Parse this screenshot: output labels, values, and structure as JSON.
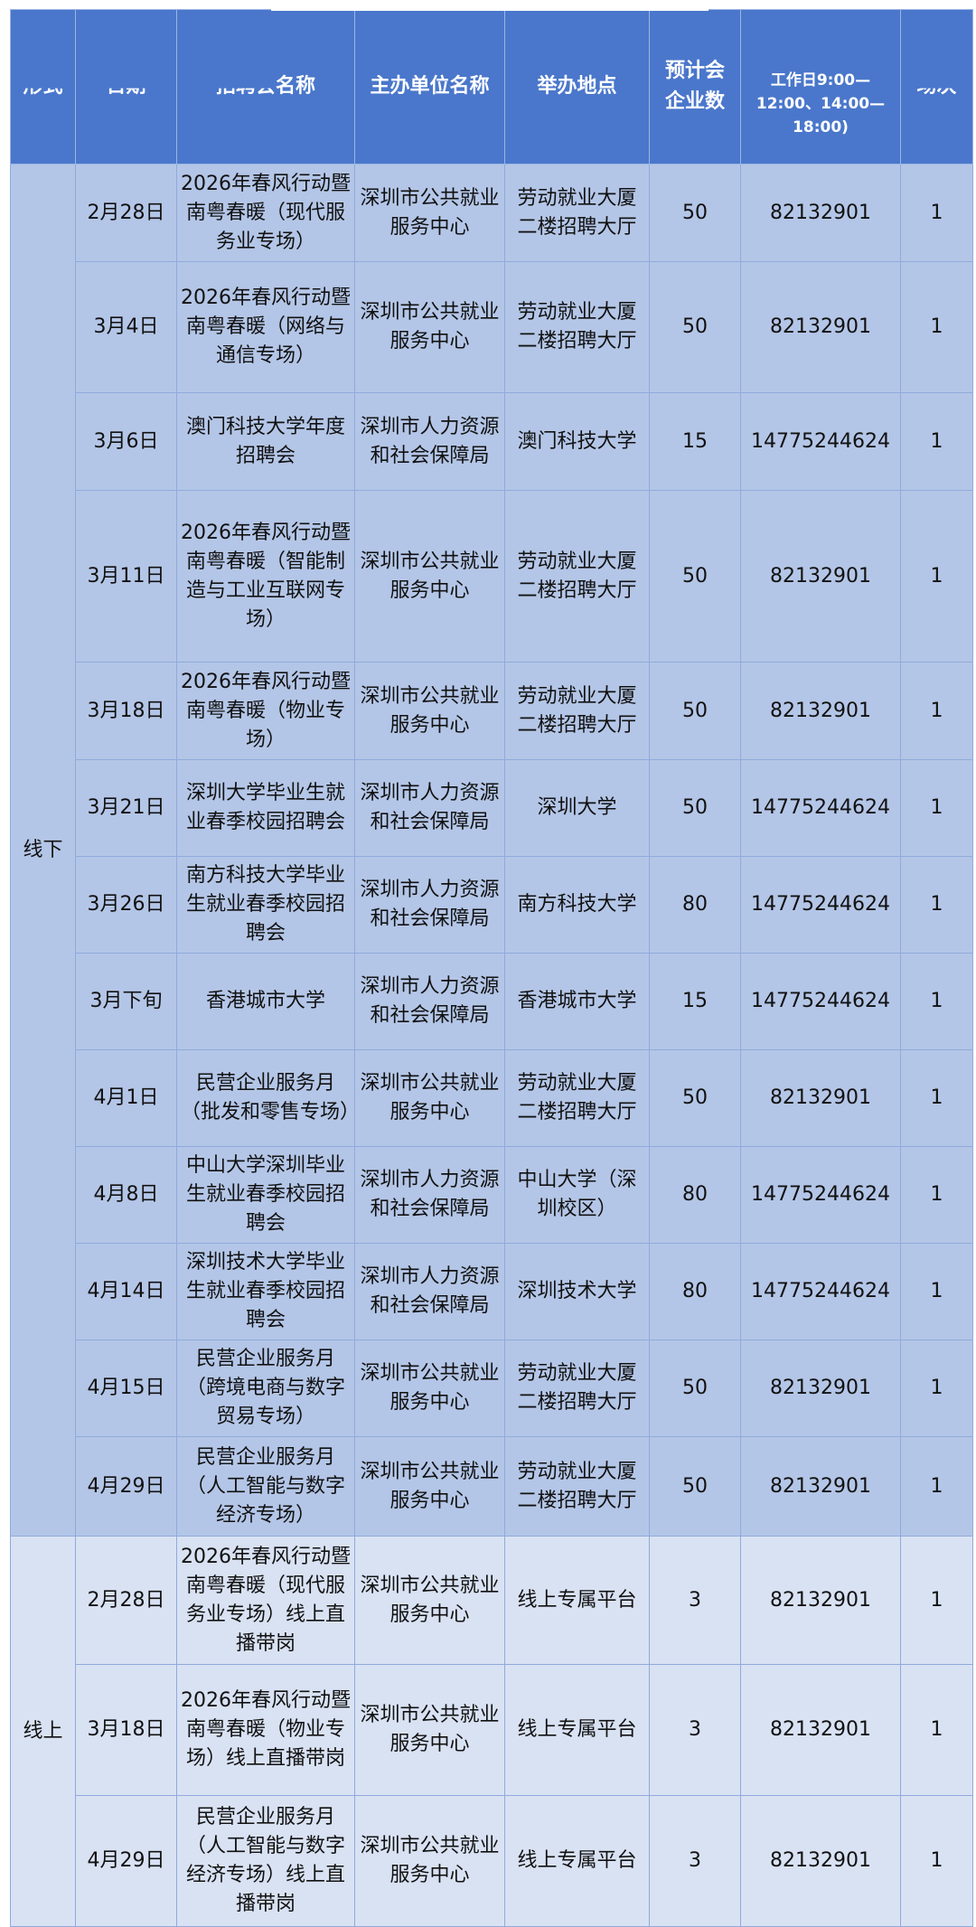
{
  "header": {
    "format": "形式",
    "date": "日期",
    "name_hidden": "招聘会",
    "name_visible": "名称",
    "host": "主办单位名称",
    "venue": "举办地点",
    "companies": "预计会企业数",
    "phone": "工作日9:00—12:00、14:00—18:00)",
    "sessions": "场次"
  },
  "groups": [
    {
      "format": "线下",
      "rows": [
        {
          "date": "2月28日",
          "name": "2026年春风行动暨南粤春暖（现代服务业专场）",
          "host": "深圳市公共就业服务中心",
          "venue": "劳动就业大厦二楼招聘大厅",
          "companies": "50",
          "phone": "82132901",
          "sessions": "1"
        },
        {
          "date": "3月4日",
          "name": "2026年春风行动暨南粤春暖（网络与通信专场）",
          "host": "深圳市公共就业服务中心",
          "venue": "劳动就业大厦二楼招聘大厅",
          "companies": "50",
          "phone": "82132901",
          "sessions": "1"
        },
        {
          "date": "3月6日",
          "name": "澳门科技大学年度招聘会",
          "host": "深圳市人力资源和社会保障局",
          "venue": "澳门科技大学",
          "companies": "15",
          "phone": "14775244624",
          "sessions": "1"
        },
        {
          "date": "3月11日",
          "name": "2026年春风行动暨南粤春暖（智能制造与工业互联网专场）",
          "host": "深圳市公共就业服务中心",
          "venue": "劳动就业大厦二楼招聘大厅",
          "companies": "50",
          "phone": "82132901",
          "sessions": "1"
        },
        {
          "date": "3月18日",
          "name": "2026年春风行动暨南粤春暖（物业专场）",
          "host": "深圳市公共就业服务中心",
          "venue": "劳动就业大厦二楼招聘大厅",
          "companies": "50",
          "phone": "82132901",
          "sessions": "1"
        },
        {
          "date": "3月21日",
          "name": "深圳大学毕业生就业春季校园招聘会",
          "host": "深圳市人力资源和社会保障局",
          "venue": "深圳大学",
          "companies": "50",
          "phone": "14775244624",
          "sessions": "1"
        },
        {
          "date": "3月26日",
          "name": "南方科技大学毕业生就业春季校园招聘会",
          "host": "深圳市人力资源和社会保障局",
          "venue": "南方科技大学",
          "companies": "80",
          "phone": "14775244624",
          "sessions": "1"
        },
        {
          "date": "3月下旬",
          "name": "香港城市大学",
          "host": "深圳市人力资源和社会保障局",
          "venue": "香港城市大学",
          "companies": "15",
          "phone": "14775244624",
          "sessions": "1"
        },
        {
          "date": "4月1日",
          "name": "民营企业服务月（批发和零售专场）",
          "host": "深圳市公共就业服务中心",
          "venue": "劳动就业大厦二楼招聘大厅",
          "companies": "50",
          "phone": "82132901",
          "sessions": "1"
        },
        {
          "date": "4月8日",
          "name": "中山大学深圳毕业生就业春季校园招聘会",
          "host": "深圳市人力资源和社会保障局",
          "venue": "中山大学（深圳校区）",
          "companies": "80",
          "phone": "14775244624",
          "sessions": "1"
        },
        {
          "date": "4月14日",
          "name": "深圳技术大学毕业生就业春季校园招聘会",
          "host": "深圳市人力资源和社会保障局",
          "venue": "深圳技术大学",
          "companies": "80",
          "phone": "14775244624",
          "sessions": "1"
        },
        {
          "date": "4月15日",
          "name": "民营企业服务月（跨境电商与数字贸易专场）",
          "host": "深圳市公共就业服务中心",
          "venue": "劳动就业大厦二楼招聘大厅",
          "companies": "50",
          "phone": "82132901",
          "sessions": "1"
        },
        {
          "date": "4月29日",
          "name": "民营企业服务月（人工智能与数字经济专场）",
          "host": "深圳市公共就业服务中心",
          "venue": "劳动就业大厦二楼招聘大厅",
          "companies": "50",
          "phone": "82132901",
          "sessions": "1"
        }
      ]
    },
    {
      "format": "线上",
      "rows": [
        {
          "date": "2月28日",
          "name": "2026年春风行动暨南粤春暖（现代服务业专场）线上直播带岗",
          "host": "深圳市公共就业服务中心",
          "venue": "线上专属平台",
          "companies": "3",
          "phone": "82132901",
          "sessions": "1"
        },
        {
          "date": "3月18日",
          "name": "2026年春风行动暨南粤春暖（物业专场）线上直播带岗",
          "host": "深圳市公共就业服务中心",
          "venue": "线上专属平台",
          "companies": "3",
          "phone": "82132901",
          "sessions": "1"
        },
        {
          "date": "4月29日",
          "name": "民营企业服务月（人工智能与数字经济专场）线上直播带岗",
          "host": "深圳市公共就业服务中心",
          "venue": "线上专属平台",
          "companies": "3",
          "phone": "82132901",
          "sessions": "1"
        }
      ]
    }
  ],
  "colors": {
    "header": "#4a77cb",
    "offline_row": "#b4c6e7",
    "online_row": "#d9e2f3",
    "border": "#8faadc"
  }
}
